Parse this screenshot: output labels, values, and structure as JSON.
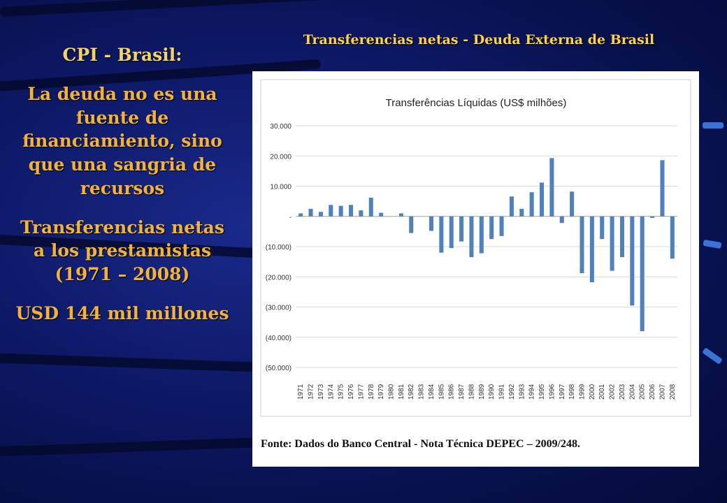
{
  "slide": {
    "title": "Transferencias netas - Deuda Externa de Brasil",
    "left_heading": "CPI - Brasil:",
    "left_paragraph_1": "La deuda no es una fuente de financiamiento, sino que una sangria de recursos",
    "left_paragraph_2": "Transferencias netas a los prestamistas (1971 – 2008)",
    "left_paragraph_3": "USD 144 mil millones"
  },
  "figure": {
    "source": "Fonte: Dados do Banco Central - Nota Técnica DEPEC – 2009/248."
  },
  "colors": {
    "bar": "#4f81bd",
    "accent_text": "#f3b33a",
    "title_text": "#ffd24a"
  },
  "chart_data": {
    "type": "bar",
    "title": "Transferências Líquidas (US$ milhões)",
    "categories": [
      "1971",
      "1972",
      "1973",
      "1974",
      "1975",
      "1976",
      "1977",
      "1978",
      "1979",
      "1980",
      "1981",
      "1982",
      "1983",
      "1984",
      "1985",
      "1986",
      "1987",
      "1988",
      "1989",
      "1990",
      "1991",
      "1992",
      "1993",
      "1994",
      "1995",
      "1996",
      "1997",
      "1998",
      "1999",
      "2000",
      "2001",
      "2002",
      "2003",
      "2004",
      "2005",
      "2006",
      "2007",
      "2008"
    ],
    "values": [
      1000,
      2500,
      1500,
      3800,
      3500,
      3800,
      2000,
      6200,
      1200,
      0,
      1000,
      -5500,
      0,
      -4800,
      -12000,
      -10500,
      -8300,
      -13500,
      -12200,
      -7500,
      -6500,
      6600,
      2500,
      8000,
      11200,
      19300,
      -2200,
      8200,
      -18800,
      -21800,
      -7500,
      -18000,
      -13500,
      -29500,
      -38000,
      -500,
      18600,
      -14000
    ],
    "ylim": [
      -50000,
      30000
    ],
    "yticks": [
      30000,
      20000,
      10000,
      0,
      -10000,
      -20000,
      -30000,
      -40000,
      -50000
    ],
    "ytick_labels": [
      "30.000",
      "20.000",
      "10.000",
      "-",
      "(10.000)",
      "(20.000)",
      "(30.000)",
      "(40.000)",
      "(50.000)"
    ],
    "grid": true,
    "legend": "none"
  }
}
